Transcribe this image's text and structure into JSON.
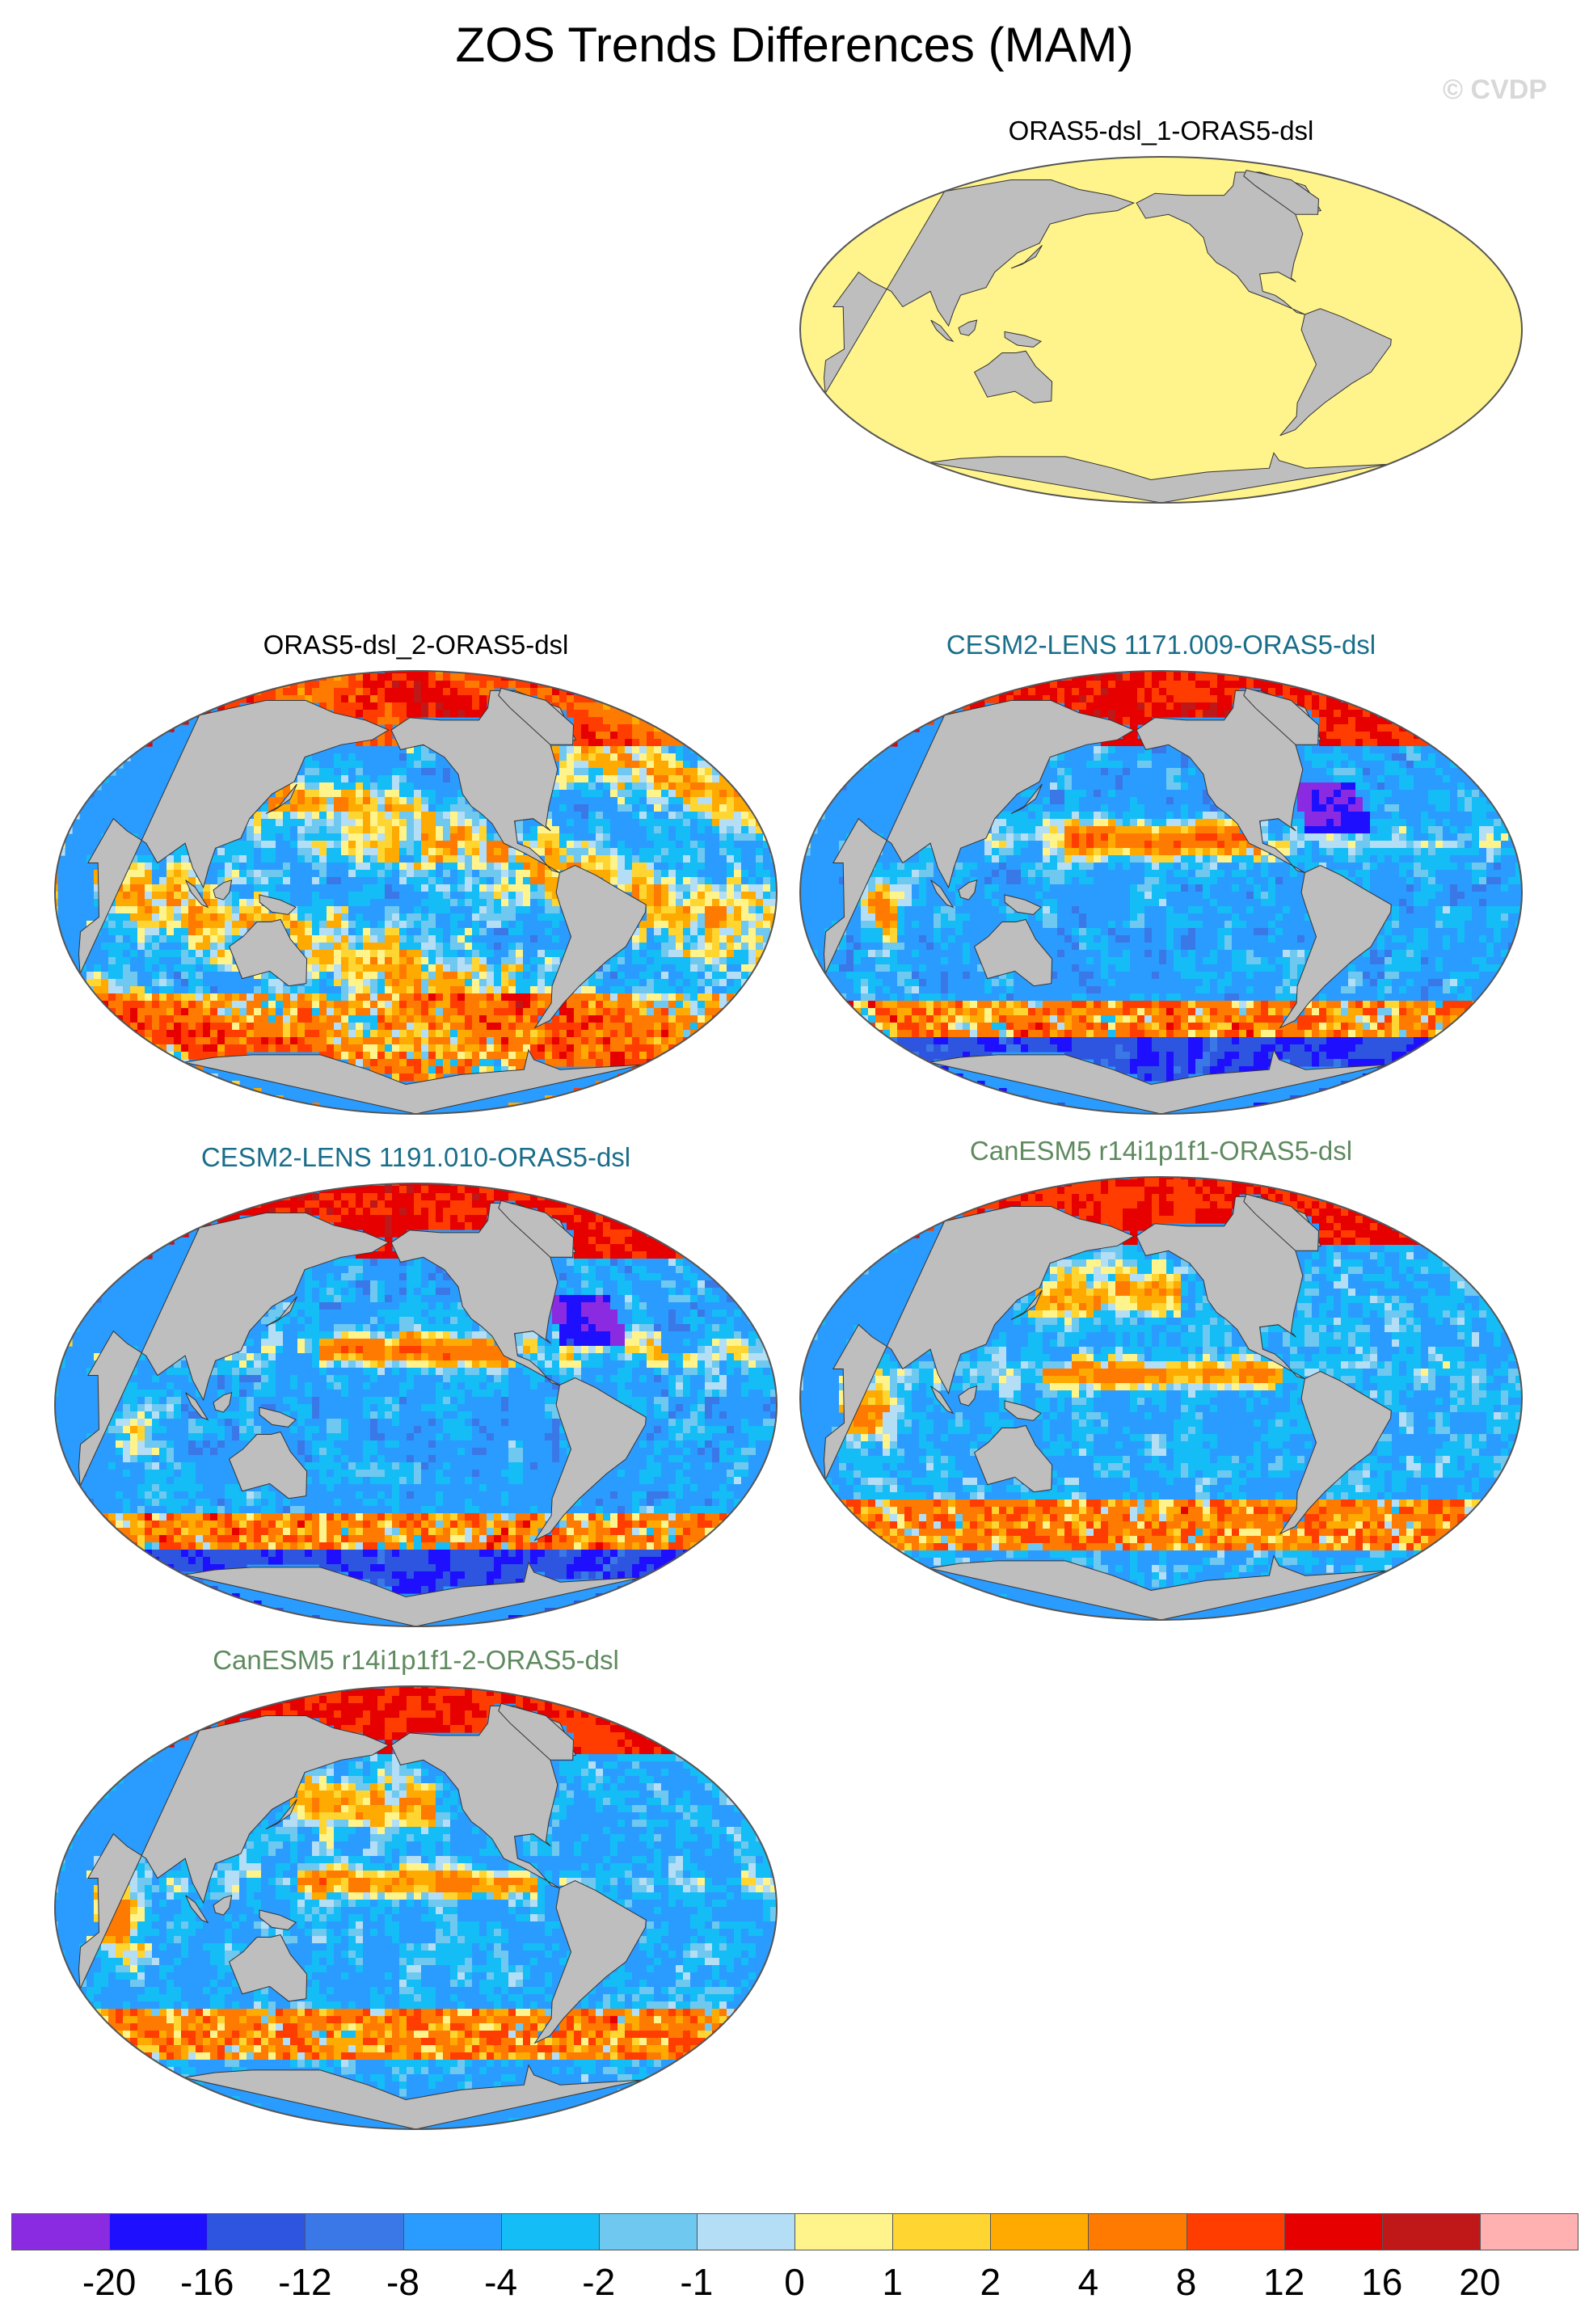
{
  "figure": {
    "title": "ZOS Trends Differences (MAM)",
    "copyright": "© CVDP"
  },
  "panels": [
    {
      "id": "p1",
      "title": "ORAS5-dsl_1-ORAS5-dsl",
      "title_color": "#000000",
      "field_pattern": "uniform",
      "uniform_value": 0.5,
      "seed": 1
    },
    {
      "id": "p2",
      "title": "ORAS5-dsl_2-ORAS5-dsl",
      "title_color": "#000000",
      "field_pattern": "oras5-2",
      "seed": 2
    },
    {
      "id": "p3",
      "title": "CESM2-LENS 1171.009-ORAS5-dsl",
      "title_color": "#1a6e8a",
      "field_pattern": "cesm2",
      "seed": 3
    },
    {
      "id": "p4",
      "title": "CESM2-LENS 1191.010-ORAS5-dsl",
      "title_color": "#1a6e8a",
      "field_pattern": "cesm2",
      "seed": 4
    },
    {
      "id": "p5",
      "title": "CanESM5 r14i1p1f1-ORAS5-dsl",
      "title_color": "#5f8a5f",
      "field_pattern": "canesm5",
      "seed": 5
    },
    {
      "id": "p6",
      "title": "CanESM5 r14i1p1f1-2-ORAS5-dsl",
      "title_color": "#5f8a5f",
      "field_pattern": "canesm5",
      "seed": 6
    }
  ],
  "colorbar": {
    "colors": [
      "#8a2be2",
      "#1e10ff",
      "#2d55e0",
      "#3a78e8",
      "#2a9bff",
      "#14bdf5",
      "#6ec8f0",
      "#b4def5",
      "#fff48c",
      "#ffd531",
      "#ffaa00",
      "#ff7a00",
      "#ff3d00",
      "#e60000",
      "#c01818",
      "#ffb0b0"
    ],
    "labels": [
      "-20",
      "-16",
      "-12",
      "-8",
      "-4",
      "-2",
      "-1",
      "0",
      "1",
      "2",
      "4",
      "8",
      "12",
      "16",
      "20"
    ]
  },
  "map_style": {
    "land_color": "#bebebe",
    "outline_color": "#555555"
  }
}
